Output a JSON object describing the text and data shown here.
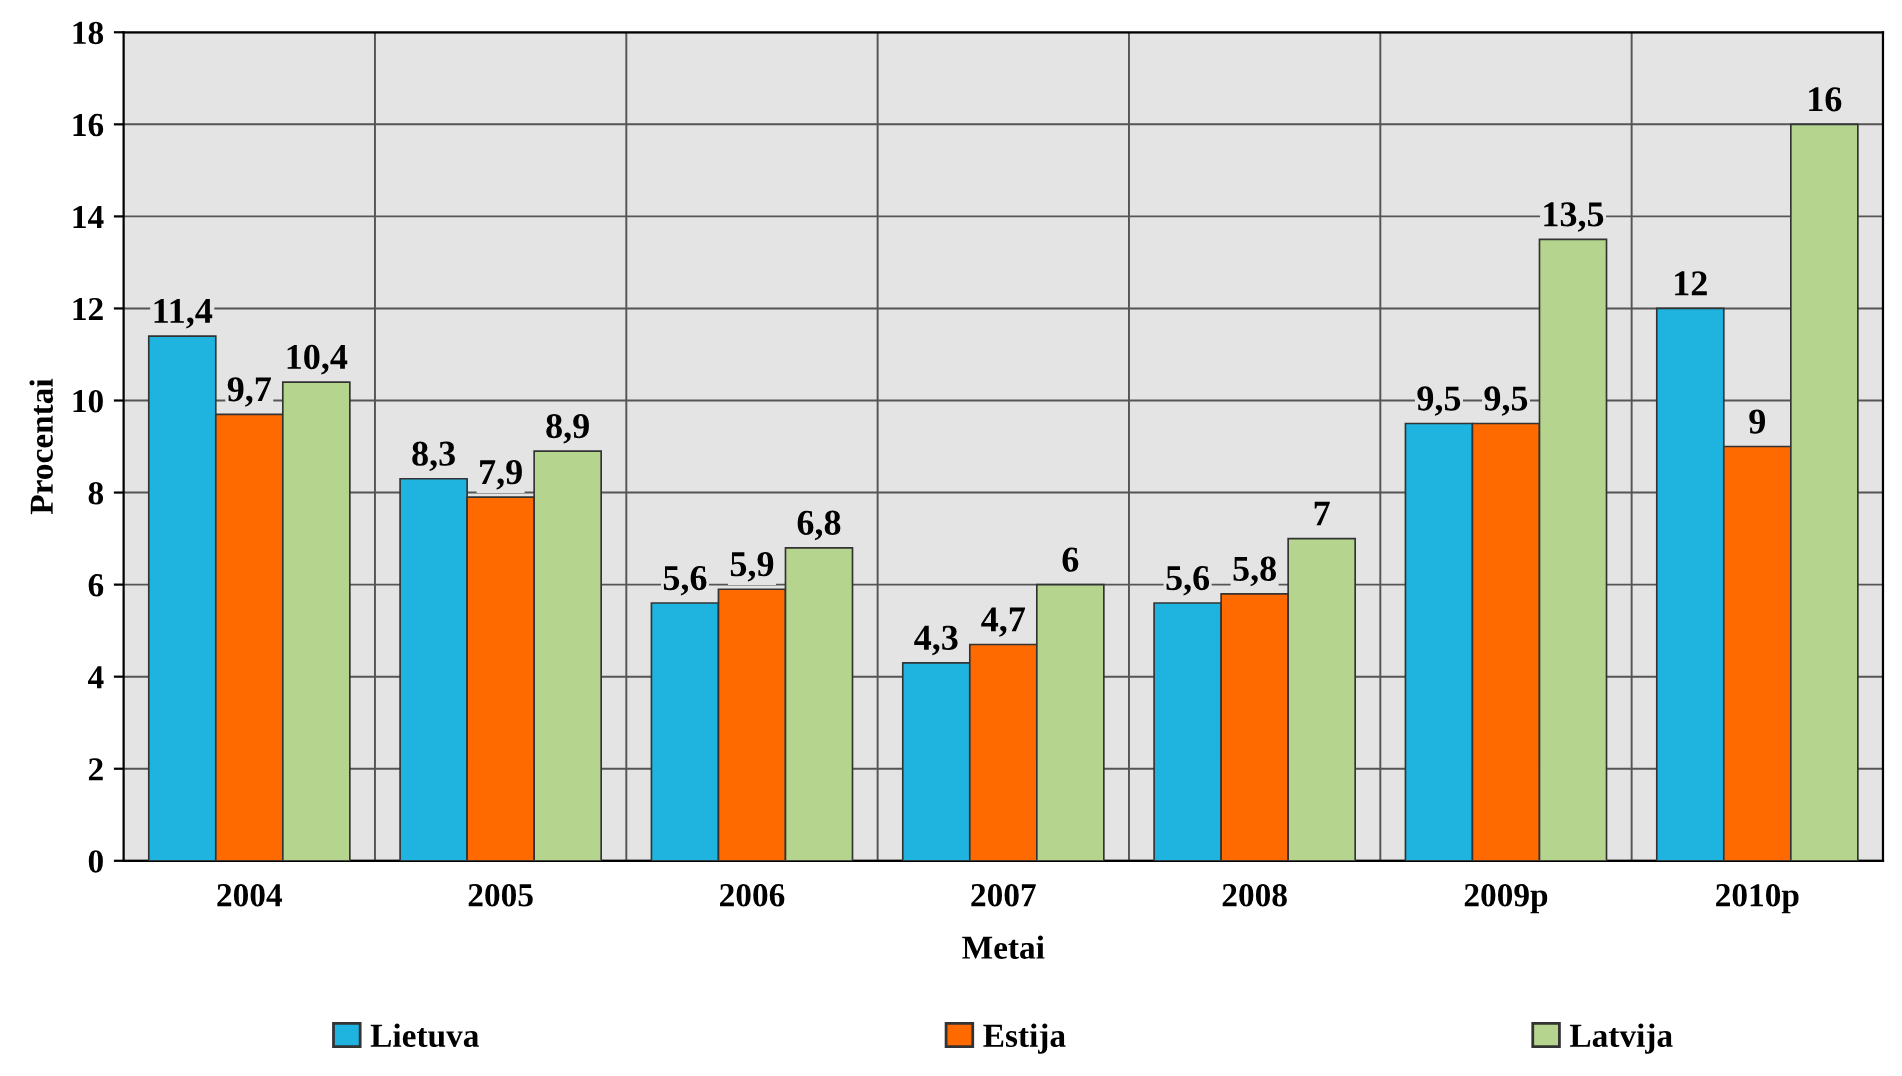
{
  "chart_data": {
    "type": "bar",
    "xlabel": "Metai",
    "ylabel": "Procentai",
    "categories": [
      "2004",
      "2005",
      "2006",
      "2007",
      "2008",
      "2009p",
      "2010p"
    ],
    "series": [
      {
        "name": "Lietuva",
        "color": "#1fb4e0",
        "values": [
          11.4,
          8.3,
          5.6,
          4.3,
          5.6,
          9.5,
          12
        ],
        "value_labels": [
          "11,4",
          "8,3",
          "5,6",
          "4,3",
          "5,6",
          "9,5",
          "12"
        ]
      },
      {
        "name": "Estija",
        "color": "#ff6a00",
        "values": [
          9.7,
          7.9,
          5.9,
          4.7,
          5.8,
          9.5,
          9
        ],
        "value_labels": [
          "9,7",
          "7,9",
          "5,9",
          "4,7",
          "5,8",
          "9,5",
          "9"
        ]
      },
      {
        "name": "Latvija",
        "color": "#b5d58f",
        "values": [
          10.4,
          8.9,
          6.8,
          6,
          7,
          13.5,
          16
        ],
        "value_labels": [
          "10,4",
          "8,9",
          "6,8",
          "6",
          "7",
          "13,5",
          "16"
        ]
      }
    ],
    "ylim": [
      0,
      18
    ],
    "yticks": [
      0,
      2,
      4,
      6,
      8,
      10,
      12,
      14,
      16,
      18
    ],
    "grid": true,
    "legend": "bottom"
  }
}
